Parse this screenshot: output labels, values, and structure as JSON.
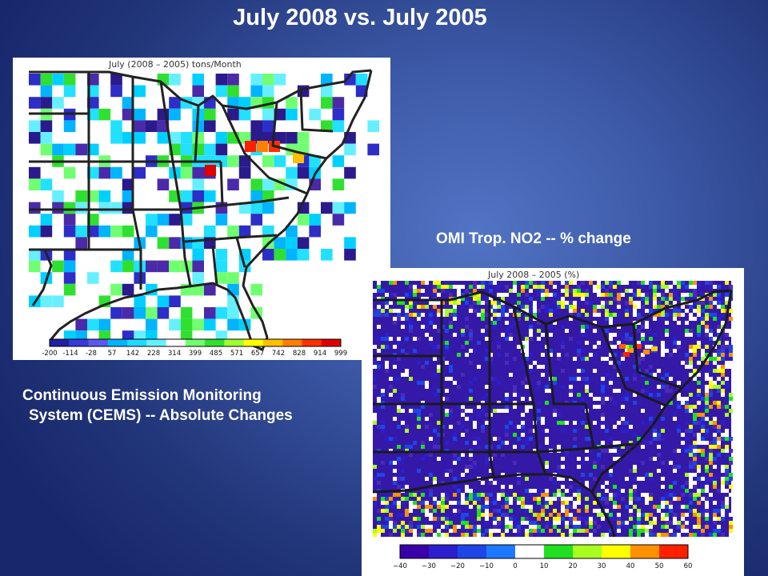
{
  "slide": {
    "title": "July 2008 vs. July 2005"
  },
  "cems": {
    "map_title": "July (2008 – 2005) tons/Month",
    "caption_line1": "Continuous Emission Monitoring",
    "caption_line2": "System (CEMS) -- Absolute Changes",
    "colorbar_ticks": [
      "-200",
      "-114",
      "-28",
      "57",
      "142",
      "228",
      "314",
      "399",
      "485",
      "571",
      "657",
      "742",
      "828",
      "914",
      "999"
    ],
    "colorbar_colors": [
      "#2020a0",
      "#3a3ad8",
      "#5a5aee",
      "#00b4ff",
      "#22d8ff",
      "#66f0ff",
      "#ffffff",
      "#70ff70",
      "#30e030",
      "#a0ff30",
      "#ffff00",
      "#ffc000",
      "#ff8000",
      "#ff3000",
      "#e00000"
    ]
  },
  "omi": {
    "caption": "OMI Trop. NO2  -- % change",
    "map_title": "July 2008 – 2005 (%)",
    "colorbar_ticks": [
      "−40",
      "−30",
      "−20",
      "−10",
      "0",
      "10",
      "20",
      "30",
      "40",
      "50",
      "60"
    ],
    "colorbar_colors": [
      "#3a00a8",
      "#2c1ecc",
      "#1e46e6",
      "#1e78ff",
      "#ffffff",
      "#20e020",
      "#a8ff20",
      "#ffff00",
      "#ff9000",
      "#ff2000"
    ]
  }
}
